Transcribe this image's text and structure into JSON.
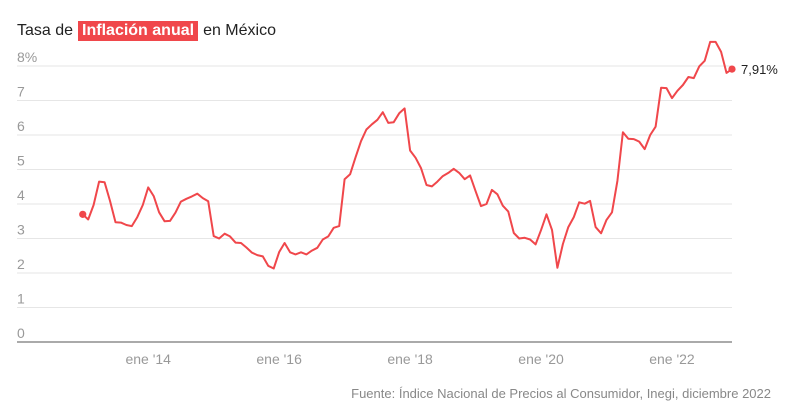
{
  "title": {
    "before": "Tasa de",
    "highlight": "Inflación anual",
    "after": "en México"
  },
  "source": "Fuente: Índice Nacional de Precios al Consumidor, Inegi, diciembre 2022",
  "colors": {
    "line": "#f0474b",
    "highlight_bg": "#f0474b",
    "grid": "#e6e6e6",
    "axis": "#555555",
    "tick_text": "#999999"
  },
  "chart_data": {
    "type": "line",
    "title": "Tasa de Inflación anual en México",
    "xlabel": "",
    "ylabel": "",
    "ylim": [
      0,
      8
    ],
    "xlim": [
      "2012-07",
      "2022-12"
    ],
    "y_ticks": [
      {
        "value": 0,
        "label": "0"
      },
      {
        "value": 1,
        "label": "1"
      },
      {
        "value": 2,
        "label": "2"
      },
      {
        "value": 3,
        "label": "3"
      },
      {
        "value": 4,
        "label": "4"
      },
      {
        "value": 5,
        "label": "5"
      },
      {
        "value": 6,
        "label": "6"
      },
      {
        "value": 7,
        "label": "7"
      },
      {
        "value": 8,
        "label": "8%"
      }
    ],
    "x_ticks": [
      {
        "date": "2014-01",
        "label": "ene '14"
      },
      {
        "date": "2016-01",
        "label": "ene '16"
      },
      {
        "date": "2018-01",
        "label": "ene '18"
      },
      {
        "date": "2020-01",
        "label": "ene '20"
      },
      {
        "date": "2022-01",
        "label": "ene '22"
      }
    ],
    "grid": true,
    "end_label": "7,91%",
    "series": [
      {
        "points": [
          [
            "2013-01",
            3.7
          ],
          [
            "2013-02",
            3.55
          ],
          [
            "2013-03",
            3.97
          ],
          [
            "2013-04",
            4.65
          ],
          [
            "2013-05",
            4.63
          ],
          [
            "2013-06",
            4.09
          ],
          [
            "2013-07",
            3.47
          ],
          [
            "2013-08",
            3.46
          ],
          [
            "2013-09",
            3.39
          ],
          [
            "2013-10",
            3.36
          ],
          [
            "2013-11",
            3.62
          ],
          [
            "2013-12",
            3.97
          ],
          [
            "2014-01",
            4.48
          ],
          [
            "2014-02",
            4.23
          ],
          [
            "2014-03",
            3.76
          ],
          [
            "2014-04",
            3.5
          ],
          [
            "2014-05",
            3.51
          ],
          [
            "2014-06",
            3.75
          ],
          [
            "2014-07",
            4.07
          ],
          [
            "2014-08",
            4.15
          ],
          [
            "2014-09",
            4.22
          ],
          [
            "2014-10",
            4.3
          ],
          [
            "2014-11",
            4.17
          ],
          [
            "2014-12",
            4.08
          ],
          [
            "2015-01",
            3.07
          ],
          [
            "2015-02",
            3.0
          ],
          [
            "2015-03",
            3.14
          ],
          [
            "2015-04",
            3.06
          ],
          [
            "2015-05",
            2.88
          ],
          [
            "2015-06",
            2.87
          ],
          [
            "2015-07",
            2.74
          ],
          [
            "2015-08",
            2.59
          ],
          [
            "2015-09",
            2.52
          ],
          [
            "2015-10",
            2.48
          ],
          [
            "2015-11",
            2.21
          ],
          [
            "2015-12",
            2.13
          ],
          [
            "2016-01",
            2.61
          ],
          [
            "2016-02",
            2.87
          ],
          [
            "2016-03",
            2.6
          ],
          [
            "2016-04",
            2.54
          ],
          [
            "2016-05",
            2.6
          ],
          [
            "2016-06",
            2.54
          ],
          [
            "2016-07",
            2.65
          ],
          [
            "2016-08",
            2.73
          ],
          [
            "2016-09",
            2.97
          ],
          [
            "2016-10",
            3.06
          ],
          [
            "2016-11",
            3.31
          ],
          [
            "2016-12",
            3.36
          ],
          [
            "2017-01",
            4.72
          ],
          [
            "2017-02",
            4.86
          ],
          [
            "2017-03",
            5.35
          ],
          [
            "2017-04",
            5.82
          ],
          [
            "2017-05",
            6.16
          ],
          [
            "2017-06",
            6.31
          ],
          [
            "2017-07",
            6.44
          ],
          [
            "2017-08",
            6.66
          ],
          [
            "2017-09",
            6.35
          ],
          [
            "2017-10",
            6.37
          ],
          [
            "2017-11",
            6.63
          ],
          [
            "2017-12",
            6.77
          ],
          [
            "2018-01",
            5.55
          ],
          [
            "2018-02",
            5.34
          ],
          [
            "2018-03",
            5.04
          ],
          [
            "2018-04",
            4.55
          ],
          [
            "2018-05",
            4.51
          ],
          [
            "2018-06",
            4.65
          ],
          [
            "2018-07",
            4.81
          ],
          [
            "2018-08",
            4.9
          ],
          [
            "2018-09",
            5.02
          ],
          [
            "2018-10",
            4.9
          ],
          [
            "2018-11",
            4.72
          ],
          [
            "2018-12",
            4.83
          ],
          [
            "2019-01",
            4.37
          ],
          [
            "2019-02",
            3.94
          ],
          [
            "2019-03",
            4.0
          ],
          [
            "2019-04",
            4.41
          ],
          [
            "2019-05",
            4.28
          ],
          [
            "2019-06",
            3.95
          ],
          [
            "2019-07",
            3.78
          ],
          [
            "2019-08",
            3.16
          ],
          [
            "2019-09",
            3.0
          ],
          [
            "2019-10",
            3.02
          ],
          [
            "2019-11",
            2.97
          ],
          [
            "2019-12",
            2.83
          ],
          [
            "2020-01",
            3.24
          ],
          [
            "2020-02",
            3.7
          ],
          [
            "2020-03",
            3.25
          ],
          [
            "2020-04",
            2.15
          ],
          [
            "2020-05",
            2.84
          ],
          [
            "2020-06",
            3.33
          ],
          [
            "2020-07",
            3.62
          ],
          [
            "2020-08",
            4.05
          ],
          [
            "2020-09",
            4.01
          ],
          [
            "2020-10",
            4.09
          ],
          [
            "2020-11",
            3.33
          ],
          [
            "2020-12",
            3.15
          ],
          [
            "2021-01",
            3.54
          ],
          [
            "2021-02",
            3.76
          ],
          [
            "2021-03",
            4.67
          ],
          [
            "2021-04",
            6.08
          ],
          [
            "2021-05",
            5.89
          ],
          [
            "2021-06",
            5.88
          ],
          [
            "2021-07",
            5.81
          ],
          [
            "2021-08",
            5.59
          ],
          [
            "2021-09",
            6.0
          ],
          [
            "2021-10",
            6.24
          ],
          [
            "2021-11",
            7.37
          ],
          [
            "2021-12",
            7.36
          ],
          [
            "2022-01",
            7.07
          ],
          [
            "2022-02",
            7.28
          ],
          [
            "2022-03",
            7.45
          ],
          [
            "2022-04",
            7.68
          ],
          [
            "2022-05",
            7.65
          ],
          [
            "2022-06",
            7.99
          ],
          [
            "2022-07",
            8.15
          ],
          [
            "2022-08",
            8.7
          ],
          [
            "2022-09",
            8.7
          ],
          [
            "2022-10",
            8.41
          ],
          [
            "2022-11",
            7.8
          ],
          [
            "2022-12",
            7.91
          ]
        ]
      }
    ]
  }
}
